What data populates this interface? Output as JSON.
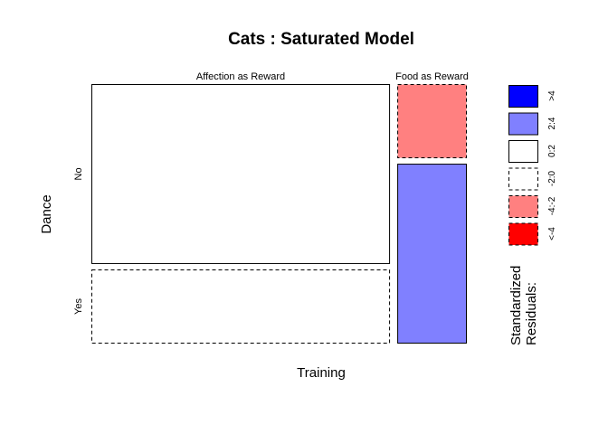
{
  "chart_data": {
    "type": "mosaic",
    "title": "Cats : Saturated Model",
    "xlabel": "Training",
    "ylabel": "Dance",
    "x_categories": [
      "Affection as Reward",
      "Food as Reward"
    ],
    "y_categories": [
      "No",
      "Yes"
    ],
    "cells": [
      {
        "training": "Affection as Reward",
        "dance": "No",
        "residual_class": "0:2"
      },
      {
        "training": "Affection as Reward",
        "dance": "Yes",
        "residual_class": "-2:0"
      },
      {
        "training": "Food as Reward",
        "dance": "No",
        "residual_class": "-4:-2"
      },
      {
        "training": "Food as Reward",
        "dance": "Yes",
        "residual_class": "2:4"
      }
    ],
    "marginal_x": [
      0.811,
      0.189
    ],
    "conditional_no": [
      0.708,
      0.292
    ],
    "legend": {
      "title_line1": "Standardized",
      "title_line2": "Residuals:",
      "entries": [
        {
          "label": ">4",
          "fill": "#0000ff",
          "dashed": false
        },
        {
          "label": "2:4",
          "fill": "#8080ff",
          "dashed": false
        },
        {
          "label": "0:2",
          "fill": "#ffffff",
          "dashed": false
        },
        {
          "label": "-2:0",
          "fill": "#ffffff",
          "dashed": true
        },
        {
          "label": "-4:-2",
          "fill": "#ff8080",
          "dashed": true
        },
        {
          "label": "<-4",
          "fill": "#ff0000",
          "dashed": true
        }
      ]
    }
  }
}
